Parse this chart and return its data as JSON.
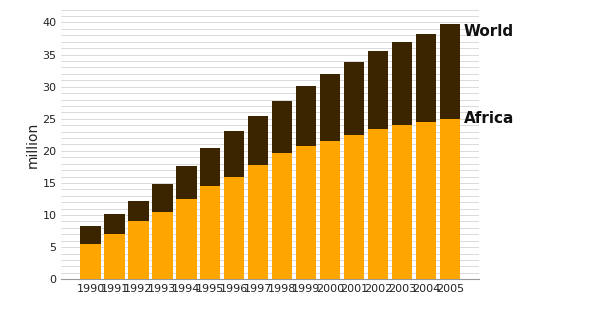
{
  "years": [
    "1990",
    "1991",
    "1992",
    "1993",
    "1994",
    "1995",
    "1996",
    "1997",
    "1998",
    "1999",
    "2000",
    "2001",
    "2002",
    "2003",
    "2004",
    "2005"
  ],
  "world": [
    8.3,
    10.2,
    12.2,
    14.9,
    17.6,
    20.5,
    23.1,
    25.5,
    27.8,
    30.1,
    32.0,
    33.8,
    35.5,
    37.0,
    38.2,
    39.8
  ],
  "africa": [
    5.5,
    7.0,
    9.0,
    10.5,
    12.5,
    14.5,
    16.0,
    17.8,
    19.7,
    20.7,
    21.5,
    22.4,
    23.4,
    24.0,
    24.5,
    25.0
  ],
  "world_color": "#3b2500",
  "africa_color": "#FFA500",
  "background_color": "#ffffff",
  "grid_color": "#cccccc",
  "ylabel": "million",
  "ylim": [
    0,
    42
  ],
  "yticks_major": [
    0,
    5,
    10,
    15,
    20,
    25,
    30,
    35,
    40
  ],
  "bar_width": 0.85,
  "legend_world": "World",
  "legend_africa": "Africa"
}
